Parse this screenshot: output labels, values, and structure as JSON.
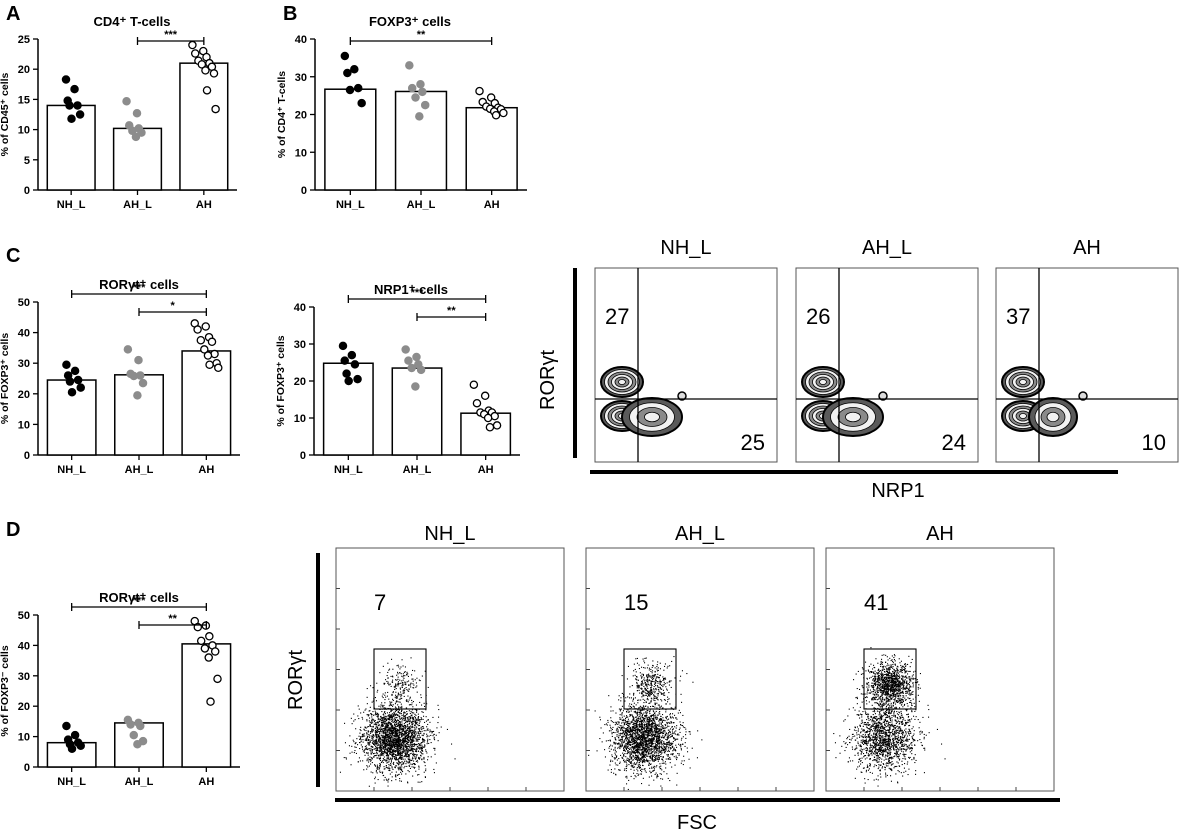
{
  "panel_labels": {
    "A": "A",
    "B": "B",
    "C": "C",
    "D": "D"
  },
  "chart_data": [
    {
      "id": "A",
      "type": "bar",
      "title": "CD4⁺ T-cells",
      "ylabel": "% of CD45⁺ cells",
      "categories": [
        "NH_L",
        "AH_L",
        "AH"
      ],
      "values": [
        14,
        10.2,
        21
      ],
      "ylim": [
        0,
        25
      ],
      "yticks": [
        0,
        5,
        10,
        15,
        20,
        25
      ],
      "point_style": [
        "filled-black",
        "filled-gray",
        "open"
      ],
      "points": [
        [
          18.3,
          16.7,
          14.8,
          14,
          14,
          12.5,
          11.8
        ],
        [
          14.7,
          12.7,
          10.7,
          10.2,
          9.8,
          9.5,
          8.8
        ],
        [
          24,
          23,
          22.6,
          22,
          21.4,
          21,
          20.8,
          20.4,
          19.8,
          19.3,
          16.5,
          13.4
        ]
      ],
      "significance": [
        {
          "from": "AH_L",
          "to": "AH",
          "label": "***"
        }
      ]
    },
    {
      "id": "B",
      "type": "bar",
      "title": "FOXP3⁺ cells",
      "ylabel": "% of CD4⁺ T-cells",
      "categories": [
        "NH_L",
        "AH_L",
        "AH"
      ],
      "values": [
        26.7,
        26.1,
        21.8
      ],
      "ylim": [
        0,
        40
      ],
      "yticks": [
        0,
        10,
        20,
        30,
        40
      ],
      "point_style": [
        "filled-black",
        "filled-gray",
        "open"
      ],
      "points": [
        [
          35.5,
          32,
          31,
          27,
          26.5,
          23
        ],
        [
          33,
          28,
          27,
          26,
          24.5,
          22.5,
          19.5
        ],
        [
          26.2,
          24.5,
          23.3,
          23,
          22.1,
          21.8,
          21.5,
          21.4,
          20.8,
          20.4,
          19.8
        ]
      ],
      "significance": [
        {
          "from": "NH_L",
          "to": "AH",
          "label": "**"
        }
      ]
    },
    {
      "id": "C1",
      "type": "bar",
      "title": "RORγt⁺ cells",
      "ylabel": "% of FOXP3⁺ cells",
      "categories": [
        "NH_L",
        "AH_L",
        "AH"
      ],
      "values": [
        24.5,
        26.2,
        34
      ],
      "ylim": [
        0,
        50
      ],
      "yticks": [
        0,
        10,
        20,
        30,
        40,
        50
      ],
      "point_style": [
        "filled-black",
        "filled-gray",
        "open"
      ],
      "points": [
        [
          29.5,
          27.5,
          26,
          24.5,
          24,
          22,
          20.5
        ],
        [
          34.5,
          31,
          26.5,
          26,
          25.8,
          23.5,
          19.5
        ],
        [
          43,
          42,
          41,
          38.5,
          37.5,
          37,
          34.5,
          33,
          32.5,
          30,
          29.5,
          28.5
        ]
      ],
      "significance": [
        {
          "from": "NH_L",
          "to": "AH",
          "label": "***"
        },
        {
          "from": "AH_L",
          "to": "AH",
          "label": "*"
        }
      ]
    },
    {
      "id": "C2",
      "type": "bar",
      "title": "NRP1⁺ cells",
      "ylabel": "% of FOXP3⁺ cells",
      "categories": [
        "NH_L",
        "AH_L",
        "AH"
      ],
      "values": [
        24.8,
        23.5,
        11.3
      ],
      "ylim": [
        0,
        40
      ],
      "yticks": [
        0,
        10,
        20,
        30,
        40
      ],
      "point_style": [
        "filled-black",
        "filled-gray",
        "open"
      ],
      "points": [
        [
          29.5,
          27,
          25.5,
          24.5,
          22,
          20.5,
          20
        ],
        [
          28.5,
          26.5,
          25.5,
          24.5,
          23.5,
          23,
          18.5
        ],
        [
          19,
          16,
          14,
          12,
          11.5,
          11.5,
          11,
          10.5,
          10,
          8,
          7.5
        ]
      ],
      "significance": [
        {
          "from": "NH_L",
          "to": "AH",
          "label": "***"
        },
        {
          "from": "AH_L",
          "to": "AH",
          "label": "**"
        }
      ]
    },
    {
      "id": "D",
      "type": "bar",
      "title": "RORγt⁺ cells",
      "ylabel": "% of FOXP3⁻ cells",
      "categories": [
        "NH_L",
        "AH_L",
        "AH"
      ],
      "values": [
        8,
        14.5,
        40.5
      ],
      "ylim": [
        0,
        50
      ],
      "yticks": [
        0,
        10,
        20,
        30,
        40,
        50
      ],
      "point_style": [
        "filled-black",
        "filled-gray",
        "open"
      ],
      "points": [
        [
          13.5,
          10.5,
          9,
          8,
          7.5,
          7,
          6
        ],
        [
          15.5,
          14.5,
          14,
          13.5,
          10.5,
          8.5,
          7.5
        ],
        [
          48,
          46.5,
          46,
          43,
          41.5,
          40,
          39,
          38,
          36,
          29,
          21.5
        ]
      ],
      "significance": [
        {
          "from": "NH_L",
          "to": "AH",
          "label": "***"
        },
        {
          "from": "AH_L",
          "to": "AH",
          "label": "**"
        }
      ]
    }
  ],
  "flow_C": {
    "y_axis_label": "RORγt",
    "x_axis_label": "NRP1",
    "plots": [
      {
        "header": "NH_L",
        "upper_left": "27",
        "lower_right": "25"
      },
      {
        "header": "AH_L",
        "upper_left": "26",
        "lower_right": "24"
      },
      {
        "header": "AH",
        "upper_left": "37",
        "lower_right": "10"
      }
    ]
  },
  "flow_D": {
    "y_axis_label": "RORγt",
    "x_axis_label": "FSC",
    "plots": [
      {
        "header": "NH_L",
        "gate_value": "7",
        "gated_fraction": 0.07
      },
      {
        "header": "AH_L",
        "gate_value": "15",
        "gated_fraction": 0.15
      },
      {
        "header": "AH",
        "gate_value": "41",
        "gated_fraction": 0.41
      }
    ]
  }
}
